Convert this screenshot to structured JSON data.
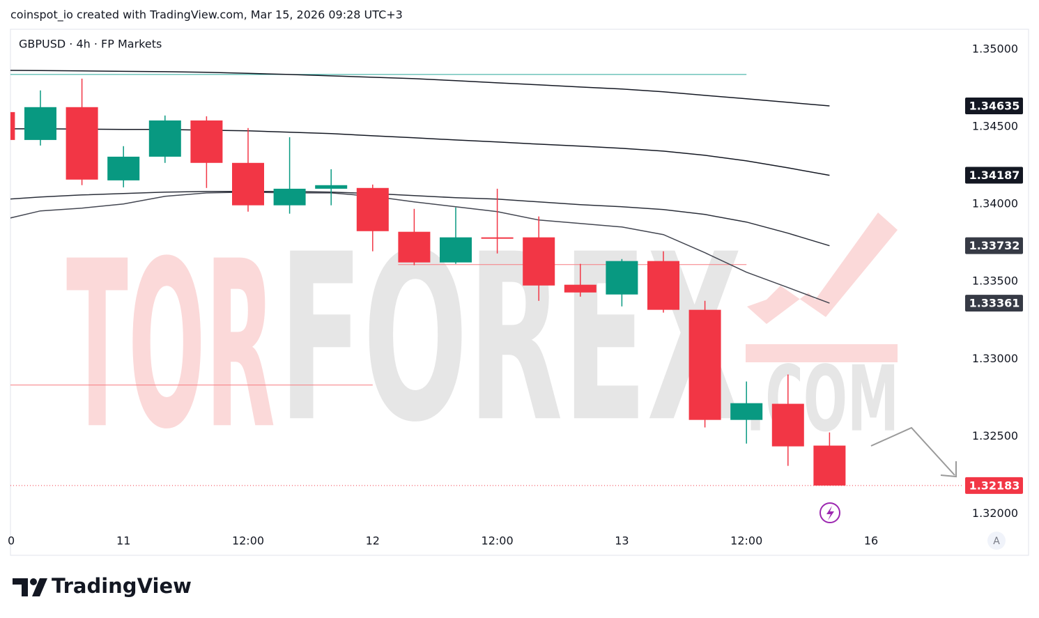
{
  "header": "coinspot_io created with TradingView.com, Mar 15, 2026 09:28 UTC+3",
  "footer": {
    "logo": "TradingView"
  },
  "scale_button": "A",
  "watermark": [
    "TOR",
    "FOREX",
    ".COM"
  ],
  "chart_data": {
    "type": "candlestick",
    "title": "GBPUSD · 4h · FP Markets",
    "categories": [
      "0",
      null,
      null,
      "11",
      null,
      null,
      "12:00",
      null,
      null,
      "12",
      null,
      null,
      "12:00",
      null,
      null,
      "13",
      null,
      null,
      "12:00",
      null,
      null,
      "16"
    ],
    "open": [
      1.34595,
      1.34415,
      1.34627,
      1.34154,
      1.34307,
      1.34541,
      1.34267,
      1.33993,
      1.341,
      1.34105,
      1.33822,
      1.33624,
      1.33786,
      1.33786,
      1.3348,
      1.33417,
      1.33633,
      1.33318,
      1.32607,
      1.32711,
      1.32441,
      null
    ],
    "high": [
      1.3462,
      1.34735,
      1.34811,
      1.34375,
      1.34573,
      1.34568,
      1.34492,
      1.34433,
      1.34226,
      1.34127,
      1.3397,
      1.33979,
      1.341,
      1.33921,
      1.33615,
      1.33646,
      1.33696,
      1.33376,
      1.32855,
      1.329,
      1.32526,
      null
    ],
    "low": [
      1.344,
      1.34379,
      1.34123,
      1.34109,
      1.34267,
      1.34105,
      1.33952,
      1.33939,
      1.33993,
      1.33696,
      1.33606,
      1.33615,
      1.33682,
      1.33376,
      1.33403,
      1.3334,
      1.333,
      1.32558,
      1.32454,
      1.3231,
      1.32183,
      null
    ],
    "close": [
      1.34415,
      1.34627,
      1.34159,
      1.34307,
      1.34541,
      1.34267,
      1.33993,
      1.341,
      1.34123,
      1.33826,
      1.33624,
      1.33786,
      1.33777,
      1.33475,
      1.3343,
      1.33633,
      1.33318,
      1.32607,
      1.32715,
      1.32436,
      1.32183,
      null
    ],
    "up_color": "#089981",
    "down_color": "#f23645",
    "moving_averages": [
      {
        "color": "#131722",
        "values": [
          1.34865,
          1.34863,
          1.34861,
          1.34858,
          1.34856,
          1.34852,
          1.34845,
          1.34838,
          1.34829,
          1.3482,
          1.34811,
          1.34798,
          1.34784,
          1.34771,
          1.34757,
          1.34744,
          1.34726,
          1.34703,
          1.34681,
          1.34658,
          1.34635,
          null
        ]
      },
      {
        "color": "#131722",
        "values": [
          1.34487,
          1.34487,
          1.34485,
          1.34483,
          1.34483,
          1.34478,
          1.34474,
          1.34465,
          1.34456,
          1.34442,
          1.34429,
          1.34415,
          1.34402,
          1.34388,
          1.34375,
          1.34361,
          1.34343,
          1.34316,
          1.3428,
          1.34235,
          1.34187,
          null
        ]
      },
      {
        "color": "#2a2e39",
        "values": [
          1.34029,
          1.34047,
          1.3406,
          1.34069,
          1.34078,
          1.34083,
          1.34083,
          1.34083,
          1.34078,
          1.34069,
          1.34056,
          1.34042,
          1.34033,
          1.34015,
          1.33997,
          1.33984,
          1.33966,
          1.33934,
          1.33885,
          1.33813,
          1.33732,
          null
        ]
      },
      {
        "color": "#434651",
        "values": [
          1.33894,
          1.33957,
          1.33975,
          1.34002,
          1.34051,
          1.34073,
          1.34078,
          1.34073,
          1.34073,
          1.34051,
          1.34015,
          1.33984,
          1.33952,
          1.33898,
          1.33876,
          1.33853,
          1.33804,
          1.33687,
          1.33561,
          1.33462,
          1.33361,
          null
        ]
      }
    ],
    "levels": [
      {
        "price": 1.34838,
        "color": "#26a69a",
        "from": 0,
        "to": 18
      },
      {
        "price": 1.3361,
        "color": "#f77c80",
        "from": 10,
        "to": 18
      },
      {
        "price": 1.32832,
        "color": "#f77c80",
        "from": 0,
        "to": 9
      }
    ],
    "ylim": [
      1.3189,
      1.3513
    ],
    "yticks": [
      {
        "value": 1.32,
        "label": "1.32000"
      },
      {
        "value": 1.325,
        "label": "1.32500"
      },
      {
        "value": 1.33,
        "label": "1.33000"
      },
      {
        "value": 1.335,
        "label": "1.33500"
      },
      {
        "value": 1.34,
        "label": "1.34000"
      },
      {
        "value": 1.345,
        "label": "1.34500"
      },
      {
        "value": 1.35,
        "label": "1.35000"
      }
    ],
    "grid": false
  }
}
